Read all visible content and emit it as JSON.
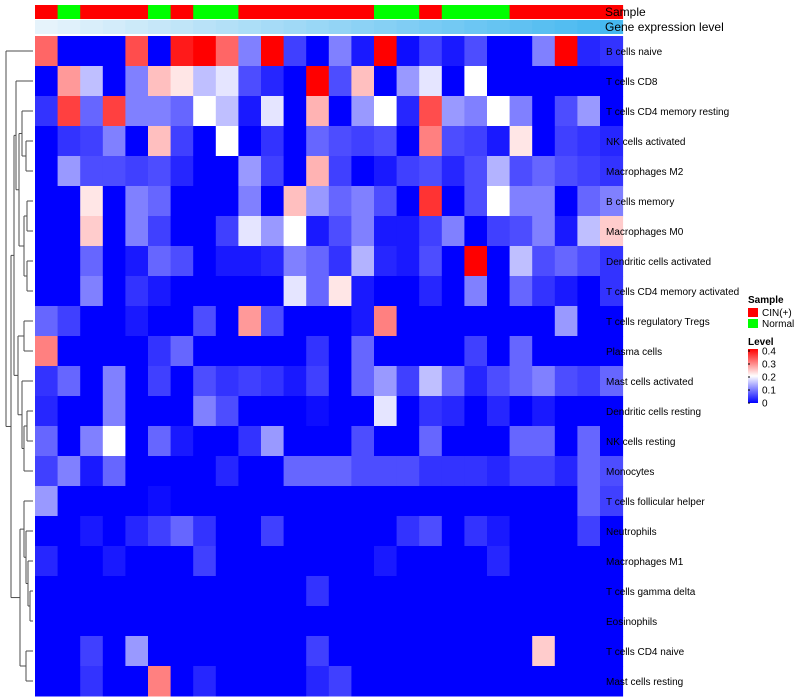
{
  "chart_data": {
    "type": "heatmap",
    "title": "",
    "column_annotations": [
      {
        "name": "Sample"
      },
      {
        "name": "Gene expression level"
      }
    ],
    "sample_groups": [
      "C",
      "N",
      "C",
      "C",
      "C",
      "N",
      "C",
      "N",
      "N",
      "C",
      "C",
      "C",
      "C",
      "C",
      "C",
      "N",
      "N",
      "C",
      "N",
      "N",
      "N",
      "C",
      "C",
      "C",
      "C",
      "C"
    ],
    "rows": [
      "B cells naive",
      "T cells CD8",
      "T cells CD4 memory resting",
      "NK cells activated",
      "Macrophages M2",
      "B cells memory",
      "Macrophages M0",
      "Dendritic cells activated",
      "T cells CD4 memory activated",
      "T cells regulatory  Tregs",
      "Plasma cells",
      "Mast cells activated",
      "Dendritic cells resting",
      "NK cells resting",
      "Monocytes",
      "T cells follicular helper",
      "Neutrophils",
      "Macrophages M1",
      "T cells gamma delta",
      "Eosinophils",
      "T cells CD4 naive",
      "Mast cells resting"
    ],
    "values": [
      [
        0.32,
        0,
        0,
        0,
        0.34,
        0,
        0.38,
        0.4,
        0.32,
        0.1,
        0.4,
        0.05,
        0,
        0.1,
        0.02,
        0.4,
        0.01,
        0.05,
        0.02,
        0.06,
        0,
        0,
        0.1,
        0.4,
        0.03,
        0.04
      ],
      [
        0,
        0.28,
        0.15,
        0,
        0.1,
        0.25,
        0.22,
        0.15,
        0.18,
        0.06,
        0.03,
        0,
        0.4,
        0.06,
        0.25,
        0,
        0.12,
        0.18,
        0,
        0.2,
        0,
        0,
        0,
        0,
        0,
        0
      ],
      [
        0.04,
        0.35,
        0.08,
        0.35,
        0.1,
        0.1,
        0.08,
        0.2,
        0.15,
        0.02,
        0.18,
        0,
        0.26,
        0,
        0.12,
        0.2,
        0.03,
        0.34,
        0.12,
        0.1,
        0.2,
        0.1,
        0,
        0.06,
        0.12,
        0
      ],
      [
        0,
        0.04,
        0.05,
        0.1,
        0,
        0.25,
        0.05,
        0,
        0.2,
        0,
        0.04,
        0,
        0.08,
        0.06,
        0.05,
        0.06,
        0,
        0.3,
        0.06,
        0.05,
        0.02,
        0.22,
        0,
        0.05,
        0.04,
        0.03
      ],
      [
        0,
        0.12,
        0.06,
        0.06,
        0.05,
        0.06,
        0.03,
        0,
        0,
        0.12,
        0.05,
        0,
        0.26,
        0.05,
        0,
        0.02,
        0.05,
        0.06,
        0.03,
        0.06,
        0.14,
        0.06,
        0.08,
        0.06,
        0.05,
        0.04
      ],
      [
        0,
        0,
        0.22,
        0,
        0.1,
        0.08,
        0,
        0,
        0,
        0.1,
        0,
        0.25,
        0.12,
        0.08,
        0.1,
        0.06,
        0,
        0.36,
        0,
        0.06,
        0.2,
        0.1,
        0.1,
        0,
        0.08,
        0.1
      ],
      [
        0,
        0,
        0.24,
        0,
        0.1,
        0.05,
        0,
        0,
        0.05,
        0.18,
        0.12,
        0.2,
        0.02,
        0.06,
        0.1,
        0.02,
        0.02,
        0.05,
        0.1,
        0,
        0.05,
        0.06,
        0.1,
        0.02,
        0.15,
        0.24
      ],
      [
        0,
        0,
        0.08,
        0,
        0.02,
        0.08,
        0.06,
        0,
        0.02,
        0.02,
        0.03,
        0.1,
        0.08,
        0.04,
        0.14,
        0.03,
        0.02,
        0.06,
        0,
        0.4,
        0,
        0.15,
        0.06,
        0.08,
        0.06,
        0.04
      ],
      [
        0,
        0,
        0.1,
        0,
        0.04,
        0.02,
        0,
        0,
        0,
        0,
        0,
        0.18,
        0.08,
        0.22,
        0.02,
        0,
        0,
        0.03,
        0,
        0.1,
        0,
        0.08,
        0.04,
        0.02,
        0,
        0.04
      ],
      [
        0.08,
        0.05,
        0,
        0,
        0.02,
        0,
        0,
        0.06,
        0,
        0.28,
        0.06,
        0,
        0,
        0,
        0.02,
        0.3,
        0,
        0,
        0,
        0,
        0,
        0,
        0,
        0.12,
        0,
        0
      ],
      [
        0.3,
        0,
        0,
        0,
        0,
        0.04,
        0.08,
        0,
        0,
        0,
        0,
        0,
        0.04,
        0,
        0.08,
        0,
        0,
        0,
        0,
        0.05,
        0,
        0.08,
        0,
        0,
        0,
        0
      ],
      [
        0.04,
        0.08,
        0,
        0.1,
        0,
        0.05,
        0,
        0.06,
        0.04,
        0.05,
        0.04,
        0.02,
        0.05,
        0,
        0.08,
        0.12,
        0.05,
        0.15,
        0.08,
        0.03,
        0.06,
        0.08,
        0.1,
        0.06,
        0.05,
        0.08
      ],
      [
        0.03,
        0,
        0,
        0.1,
        0,
        0,
        0,
        0.1,
        0.06,
        0,
        0,
        0,
        0.01,
        0,
        0,
        0.18,
        0,
        0.04,
        0.03,
        0,
        0.03,
        0,
        0.02,
        0,
        0,
        0
      ],
      [
        0.08,
        0,
        0.1,
        0.2,
        0,
        0.08,
        0.02,
        0,
        0,
        0.04,
        0.12,
        0,
        0,
        0,
        0.06,
        0,
        0,
        0.08,
        0,
        0,
        0,
        0.08,
        0.08,
        0,
        0.08,
        0
      ],
      [
        0.05,
        0.1,
        0.02,
        0.08,
        0,
        0,
        0,
        0,
        0.03,
        0,
        0,
        0.08,
        0.08,
        0.08,
        0.06,
        0.06,
        0.06,
        0.04,
        0.04,
        0.04,
        0.03,
        0.05,
        0.05,
        0.03,
        0.08,
        0.06
      ],
      [
        0.12,
        0,
        0,
        0,
        0,
        0.01,
        0,
        0,
        0,
        0,
        0,
        0,
        0,
        0,
        0,
        0,
        0,
        0,
        0,
        0,
        0,
        0,
        0,
        0,
        0.08,
        0.05
      ],
      [
        0,
        0,
        0.02,
        0,
        0.03,
        0.05,
        0.08,
        0.04,
        0,
        0,
        0.05,
        0,
        0,
        0,
        0,
        0,
        0.04,
        0.06,
        0,
        0.04,
        0.02,
        0,
        0,
        0,
        0.05,
        0
      ],
      [
        0.03,
        0,
        0,
        0.02,
        0,
        0,
        0,
        0.05,
        0,
        0,
        0,
        0,
        0,
        0,
        0,
        0.02,
        0,
        0,
        0,
        0,
        0.03,
        0,
        0,
        0,
        0,
        0
      ],
      [
        0,
        0,
        0,
        0,
        0,
        0,
        0,
        0,
        0,
        0,
        0,
        0,
        0.04,
        0,
        0,
        0,
        0,
        0,
        0,
        0,
        0,
        0,
        0,
        0,
        0,
        0
      ],
      [
        0,
        0,
        0,
        0,
        0,
        0,
        0,
        0,
        0,
        0,
        0,
        0,
        0,
        0,
        0,
        0,
        0,
        0,
        0,
        0,
        0,
        0,
        0,
        0,
        0,
        0
      ],
      [
        0,
        0,
        0.05,
        0,
        0.12,
        0,
        0,
        0,
        0,
        0,
        0,
        0,
        0.05,
        0,
        0,
        0,
        0,
        0,
        0,
        0,
        0,
        0,
        0.24,
        0,
        0,
        0
      ],
      [
        0,
        0,
        0.04,
        0,
        0,
        0.3,
        0,
        0.03,
        0,
        0,
        0,
        0,
        0.03,
        0.05,
        0,
        0,
        0,
        0,
        0,
        0,
        0,
        0,
        0,
        0,
        0,
        0
      ]
    ],
    "legend": {
      "sample_title": "Sample",
      "sample_entries": [
        {
          "label": "CIN(+)",
          "color": "#ff0000"
        },
        {
          "label": "Normal",
          "color": "#00ff00"
        }
      ],
      "level_title": "Level",
      "level_ticks": [
        "0.4",
        "0.3",
        "0.2",
        "0.1",
        "0"
      ],
      "range": [
        0,
        0.4
      ]
    },
    "colors": {
      "low": "#0000ff",
      "mid": "#ffffff",
      "high": "#ff0000",
      "cin": "#ff0000",
      "normal": "#00ff00",
      "expr_light": "#e6f3fb",
      "expr_dark": "#46b8f0"
    }
  }
}
